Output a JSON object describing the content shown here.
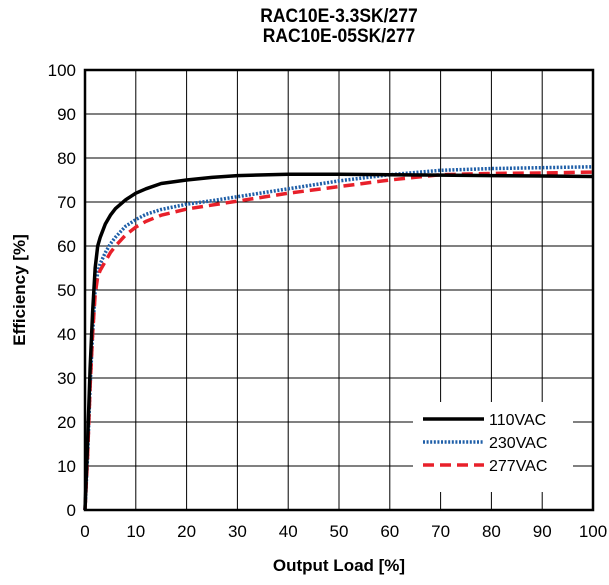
{
  "chart_data": {
    "type": "line",
    "title": "RAC10E-3.3SK/277",
    "subtitle": "RAC10E-05SK/277",
    "xlabel": "Output Load [%]",
    "ylabel": "Efficiency [%]",
    "xlim": [
      0,
      100
    ],
    "ylim": [
      0,
      100
    ],
    "xticks": [
      "0",
      "10",
      "20",
      "30",
      "40",
      "50",
      "60",
      "70",
      "80",
      "90",
      "100"
    ],
    "yticks": [
      "0",
      "10",
      "20",
      "30",
      "40",
      "50",
      "60",
      "70",
      "80",
      "90",
      "100"
    ],
    "grid": true,
    "legend_position": "bottom-right",
    "series": [
      {
        "name": "110VAC",
        "color": "#000000",
        "style": "solid",
        "x": [
          0,
          0.5,
          1,
          1.5,
          2,
          2.5,
          3,
          4,
          5,
          6,
          8,
          10,
          12,
          15,
          20,
          25,
          30,
          40,
          50,
          60,
          70,
          80,
          90,
          100
        ],
        "y": [
          0,
          15,
          32,
          45,
          55,
          60,
          62,
          65,
          67,
          68.5,
          70.5,
          72,
          73,
          74.2,
          75,
          75.6,
          76,
          76.3,
          76.3,
          76.2,
          76.1,
          76,
          75.9,
          75.8
        ]
      },
      {
        "name": "230VAC",
        "color": "#1f5fa8",
        "style": "dotted",
        "x": [
          0,
          0.5,
          1,
          1.5,
          2,
          2.5,
          3,
          4,
          5,
          6,
          8,
          10,
          12,
          15,
          20,
          25,
          30,
          40,
          50,
          60,
          70,
          80,
          90,
          100
        ],
        "y": [
          0,
          12,
          28,
          40,
          50,
          54,
          56,
          58.5,
          60.5,
          62,
          64.5,
          66,
          67.2,
          68.3,
          69.5,
          70.3,
          71.2,
          73,
          74.8,
          76.2,
          77.2,
          77.6,
          77.8,
          78
        ]
      },
      {
        "name": "277VAC",
        "color": "#e8202a",
        "style": "dashed",
        "x": [
          0,
          0.5,
          1,
          1.5,
          2,
          2.5,
          3,
          4,
          5,
          6,
          8,
          10,
          12,
          15,
          20,
          25,
          30,
          40,
          50,
          60,
          70,
          80,
          90,
          100
        ],
        "y": [
          0,
          12,
          28,
          40,
          49,
          53,
          54.5,
          56.5,
          58.5,
          60,
          62.5,
          64.3,
          65.6,
          67,
          68.4,
          69.3,
          70.2,
          72,
          73.5,
          75,
          76.2,
          76.5,
          76.6,
          76.8
        ]
      }
    ]
  }
}
